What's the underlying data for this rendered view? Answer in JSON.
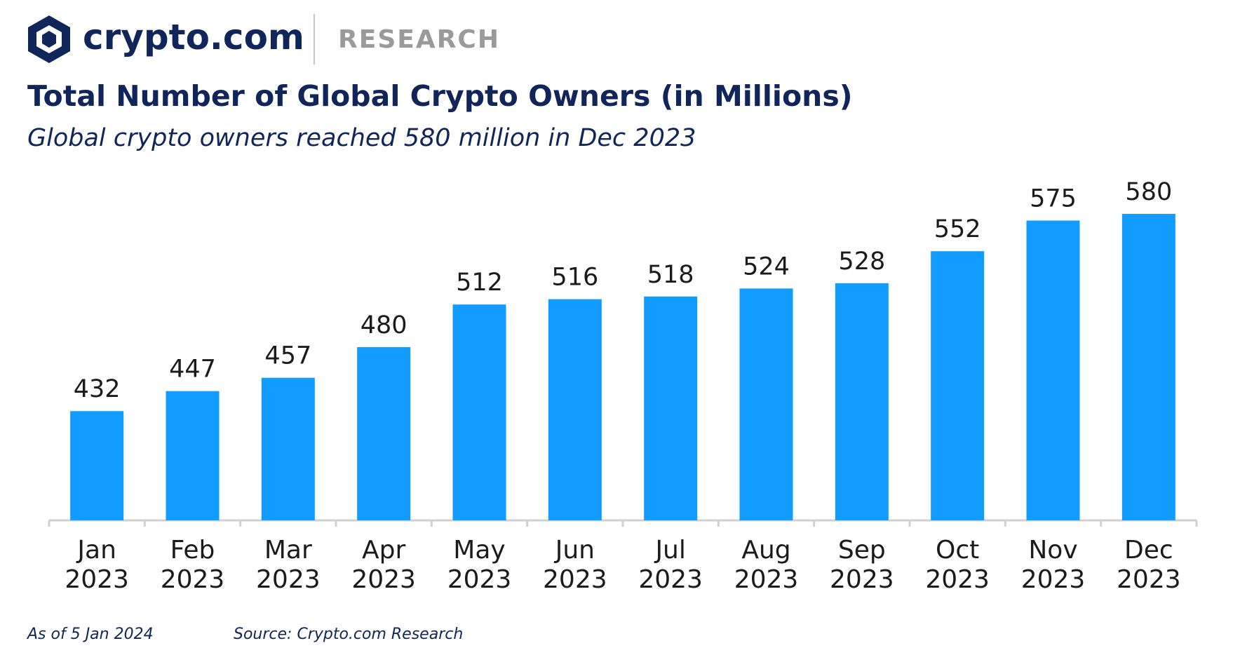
{
  "header": {
    "brand": "crypto.com",
    "section": "RESEARCH"
  },
  "chart_data": {
    "type": "bar",
    "title": "Total Number of Global Crypto Owners (in Millions)",
    "subtitle": "Global crypto owners reached 580 million in Dec 2023",
    "categories": [
      "Jan 2023",
      "Feb 2023",
      "Mar 2023",
      "Apr 2023",
      "May 2023",
      "Jun 2023",
      "Jul 2023",
      "Aug 2023",
      "Sep 2023",
      "Oct 2023",
      "Nov 2023",
      "Dec 2023"
    ],
    "values": [
      432,
      447,
      457,
      480,
      512,
      516,
      518,
      524,
      528,
      552,
      575,
      580
    ],
    "color": "#129cff",
    "ylim": [
      350,
      600
    ]
  },
  "footer": {
    "date": "As of 5 Jan 2024",
    "source": "Source: Crypto.com Research"
  }
}
